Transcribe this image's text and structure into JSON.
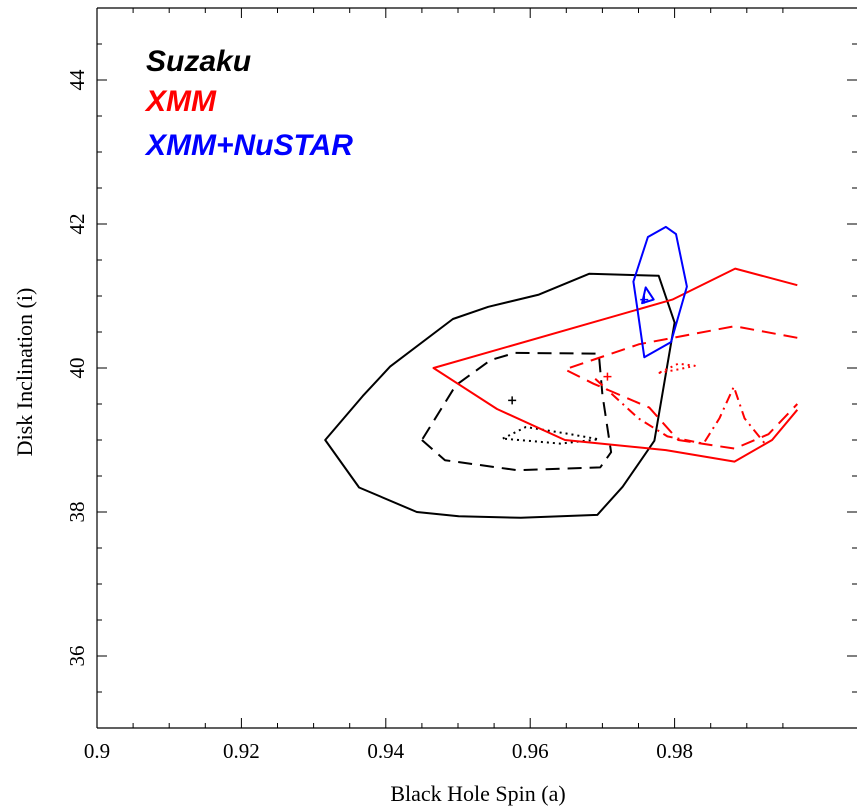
{
  "chart_data": {
    "type": "contour",
    "xlabel": "Black Hole Spin (a)",
    "ylabel": "Disk Inclination (i)",
    "xlim": [
      0.9,
      0.997
    ],
    "ylim": [
      35,
      45
    ],
    "xticks": [
      0.9,
      0.92,
      0.94,
      0.96,
      0.98
    ],
    "xtick_labels": [
      "0.9",
      "0.92",
      "0.94",
      "0.96",
      "0.98"
    ],
    "yticks": [
      36,
      38,
      40,
      42,
      44
    ],
    "ytick_labels": [
      "36",
      "38",
      "40",
      "42",
      "44"
    ],
    "legend_placement": "top-left",
    "legend": [
      {
        "label": "Suzaku",
        "color": "#000000"
      },
      {
        "label": "XMM",
        "color": "#ff0000"
      },
      {
        "label": "XMM+NuSTAR",
        "color": "#0000ff"
      }
    ],
    "series": [
      {
        "name": "Suzaku",
        "color": "#000000",
        "best_fit": [
          0.9575,
          39.55
        ],
        "contours": [
          {
            "style": "solid",
            "closed": true,
            "points": [
              [
                0.9316,
                39.0
              ],
              [
                0.9363,
                38.34
              ],
              [
                0.9443,
                38.0
              ],
              [
                0.9501,
                37.94
              ],
              [
                0.9587,
                37.92
              ],
              [
                0.9693,
                37.96
              ],
              [
                0.9728,
                38.35
              ],
              [
                0.9772,
                38.99
              ],
              [
                0.98,
                40.63
              ],
              [
                0.9778,
                41.28
              ],
              [
                0.9682,
                41.31
              ],
              [
                0.9612,
                41.02
              ],
              [
                0.9542,
                40.85
              ],
              [
                0.9493,
                40.68
              ],
              [
                0.9406,
                40.02
              ],
              [
                0.9368,
                39.61
              ],
              [
                0.9316,
                39.0
              ]
            ]
          },
          {
            "style": "dashed",
            "closed": true,
            "points": [
              [
                0.945,
                39.0
              ],
              [
                0.9482,
                38.72
              ],
              [
                0.9582,
                38.58
              ],
              [
                0.9697,
                38.62
              ],
              [
                0.9712,
                38.83
              ],
              [
                0.97,
                39.63
              ],
              [
                0.9695,
                40.2
              ],
              [
                0.9579,
                40.21
              ],
              [
                0.9545,
                40.11
              ],
              [
                0.9497,
                39.76
              ],
              [
                0.945,
                39.0
              ]
            ]
          },
          {
            "style": "dotted",
            "closed": true,
            "points": [
              [
                0.9562,
                39.02
              ],
              [
                0.9594,
                39.18
              ],
              [
                0.965,
                39.09
              ],
              [
                0.9695,
                39.01
              ],
              [
                0.9642,
                38.95
              ],
              [
                0.9562,
                39.02
              ]
            ]
          }
        ]
      },
      {
        "name": "XMM",
        "color": "#ff0000",
        "best_fit": [
          0.9707,
          39.88
        ],
        "contours": [
          {
            "style": "solid",
            "closed": false,
            "points": [
              [
                0.997,
                41.15
              ],
              [
                0.9884,
                41.38
              ],
              [
                0.9797,
                40.95
              ],
              [
                0.9466,
                40.0
              ],
              [
                0.9554,
                39.43
              ],
              [
                0.9648,
                39.0
              ],
              [
                0.9788,
                38.86
              ],
              [
                0.9883,
                38.7
              ],
              [
                0.9935,
                39.0
              ],
              [
                0.997,
                39.42
              ]
            ]
          },
          {
            "style": "dashed",
            "closed": false,
            "points": [
              [
                0.997,
                40.42
              ],
              [
                0.9883,
                40.58
              ],
              [
                0.9751,
                40.33
              ],
              [
                0.9648,
                39.98
              ],
              [
                0.9688,
                39.78
              ],
              [
                0.9765,
                39.45
              ],
              [
                0.9805,
                39.0
              ],
              [
                0.9883,
                38.88
              ],
              [
                0.993,
                39.08
              ],
              [
                0.997,
                39.5
              ]
            ]
          },
          {
            "style": "dotted",
            "closed": false,
            "points": [
              [
                0.9778,
                39.93
              ],
              [
                0.9805,
                39.98
              ],
              [
                0.9828,
                40.03
              ],
              [
                0.9805,
                40.06
              ],
              [
                0.9778,
                39.93
              ]
            ]
          },
          {
            "style": "dashdot",
            "closed": false,
            "points": [
              [
                0.969,
                39.85
              ],
              [
                0.975,
                39.3
              ],
              [
                0.979,
                39.05
              ],
              [
                0.984,
                38.95
              ],
              [
                0.9862,
                39.3
              ],
              [
                0.9882,
                39.74
              ],
              [
                0.9897,
                39.3
              ],
              [
                0.9925,
                38.95
              ]
            ]
          }
        ]
      },
      {
        "name": "XMM+NuSTAR",
        "color": "#0000ff",
        "best_fit": [
          0.9758,
          40.95
        ],
        "contours": [
          {
            "style": "solid",
            "closed": true,
            "points": [
              [
                0.9748,
                40.85
              ],
              [
                0.9758,
                40.15
              ],
              [
                0.9795,
                40.36
              ],
              [
                0.9817,
                41.13
              ],
              [
                0.9802,
                41.86
              ],
              [
                0.9788,
                41.96
              ],
              [
                0.9763,
                41.82
              ],
              [
                0.9743,
                41.2
              ],
              [
                0.9748,
                40.85
              ]
            ]
          },
          {
            "style": "solid",
            "closed": true,
            "points": [
              [
                0.9755,
                40.9
              ],
              [
                0.976,
                41.12
              ],
              [
                0.9771,
                40.95
              ],
              [
                0.9755,
                40.9
              ]
            ]
          }
        ]
      }
    ]
  }
}
